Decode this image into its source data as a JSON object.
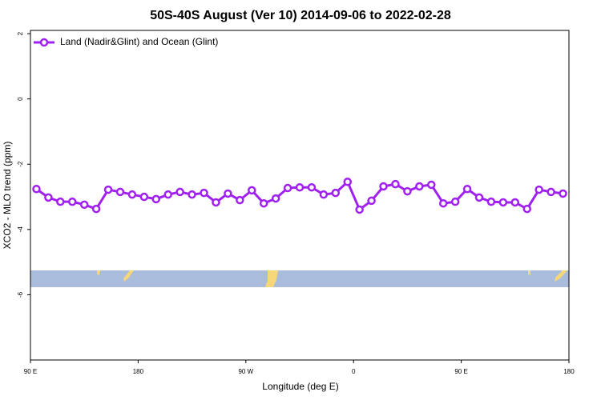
{
  "chart_data": {
    "type": "line",
    "title": "50S-40S August (Ver 10)   2014-09-06 to 2022-02-28",
    "x_label": "Longitude (deg E)",
    "y_label": "XCO2 - MLO trend (ppm)",
    "xlim": [
      90,
      540
    ],
    "xticks": [
      {
        "value": 90,
        "label": "90 E"
      },
      {
        "value": 180,
        "label": "180"
      },
      {
        "value": 270,
        "label": "90 W"
      },
      {
        "value": 360,
        "label": "0"
      },
      {
        "value": 450,
        "label": "90 E"
      },
      {
        "value": 540,
        "label": "180"
      }
    ],
    "ylim": [
      -8,
      2.1
    ],
    "yticks": [
      2,
      0,
      -2,
      -4,
      -6
    ],
    "legend": "top-left",
    "x": [
      95,
      105,
      115,
      125,
      135,
      145,
      155,
      165,
      175,
      185,
      195,
      205,
      215,
      225,
      235,
      245,
      255,
      265,
      275,
      285,
      295,
      305,
      315,
      325,
      335,
      345,
      355,
      365,
      375,
      385,
      395,
      405,
      415,
      425,
      435,
      445,
      455,
      465,
      475,
      485,
      495,
      505,
      515,
      525,
      535
    ],
    "series": [
      {
        "name": "Land (Nadir&Glint) and Ocean (Glint)",
        "color": "#a020f0",
        "values": [
          -2.76,
          -3.02,
          -3.15,
          -3.15,
          -3.24,
          -3.37,
          -2.78,
          -2.85,
          -2.93,
          -3.0,
          -3.07,
          -2.93,
          -2.85,
          -2.93,
          -2.88,
          -3.17,
          -2.9,
          -3.1,
          -2.8,
          -3.2,
          -3.05,
          -2.73,
          -2.71,
          -2.71,
          -2.93,
          -2.88,
          -2.54,
          -3.39,
          -3.12,
          -2.68,
          -2.61,
          -2.83,
          -2.68,
          -2.63,
          -3.2,
          -3.15,
          -2.76,
          -3.02,
          -3.15,
          -3.17,
          -3.17,
          -3.37,
          -2.78,
          -2.85,
          -2.9
        ]
      }
    ]
  }
}
